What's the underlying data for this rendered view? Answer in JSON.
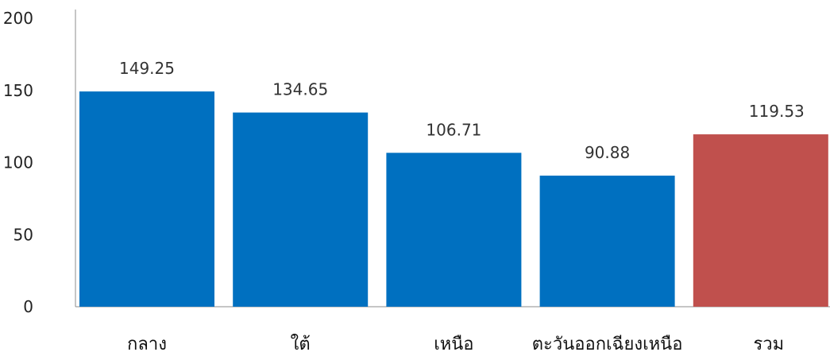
{
  "chart_data": {
    "type": "bar",
    "title": "",
    "xlabel": "",
    "ylabel": "",
    "categories": [
      "กลาง",
      "ใต้",
      "เหนือ",
      "ตะวันออกเฉียงเหนือ",
      "รวม"
    ],
    "values": [
      149.25,
      134.65,
      106.71,
      90.88,
      119.53
    ],
    "data_labels": [
      "149.25",
      "134.65",
      "106.71",
      "90.88",
      "119.53"
    ],
    "bar_colors": [
      "#0070c0",
      "#0070c0",
      "#0070c0",
      "#0070c0",
      "#c0504d"
    ],
    "ylim": [
      0,
      200
    ],
    "yticks": [
      0,
      50,
      100,
      150,
      200
    ],
    "grid": false,
    "legend": "none"
  }
}
